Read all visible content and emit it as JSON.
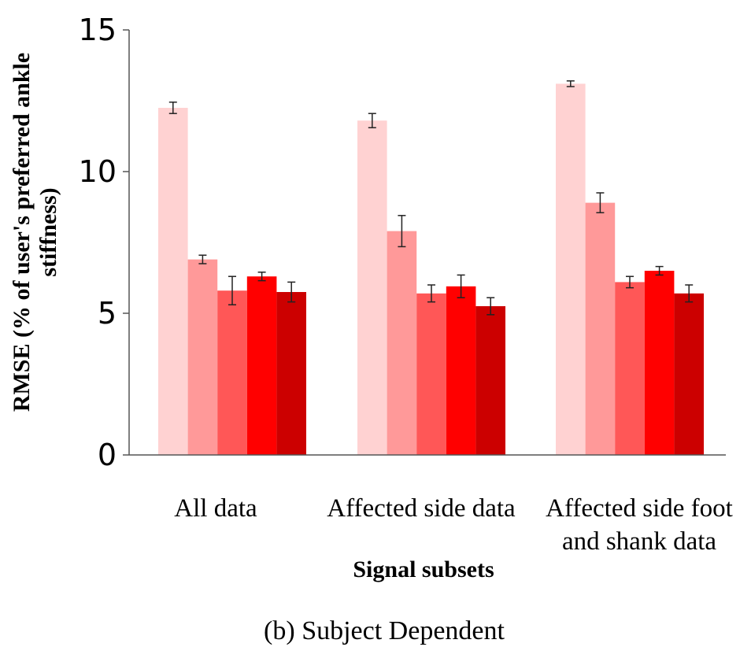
{
  "chart_data": {
    "type": "bar",
    "xlabel": "Signal subsets",
    "ylabel_lines": [
      "RMSE (% of user's preferred ankle",
      "stiffness)"
    ],
    "ylim": [
      0,
      15
    ],
    "yticks": [
      0,
      5,
      10,
      15
    ],
    "caption": "(b) Subject Dependent",
    "grid": false,
    "legend": "none",
    "categories": [
      [
        "All data"
      ],
      [
        "Affected side data"
      ],
      [
        "Affected side foot",
        "and shank data"
      ]
    ],
    "series_colors": [
      "#ffd2d2",
      "#ff9999",
      "#ff5757",
      "#ff0000",
      "#cc0000"
    ],
    "series": [
      {
        "values": [
          12.25,
          11.8,
          13.1
        ],
        "errors": [
          0.2,
          0.25,
          0.1
        ]
      },
      {
        "values": [
          6.9,
          7.9,
          8.9
        ],
        "errors": [
          0.15,
          0.55,
          0.35
        ]
      },
      {
        "values": [
          5.8,
          5.7,
          6.1
        ],
        "errors": [
          0.5,
          0.3,
          0.2
        ]
      },
      {
        "values": [
          6.3,
          5.95,
          6.5
        ],
        "errors": [
          0.15,
          0.4,
          0.15
        ]
      },
      {
        "values": [
          5.75,
          5.25,
          5.7
        ],
        "errors": [
          0.35,
          0.3,
          0.3
        ]
      }
    ]
  }
}
